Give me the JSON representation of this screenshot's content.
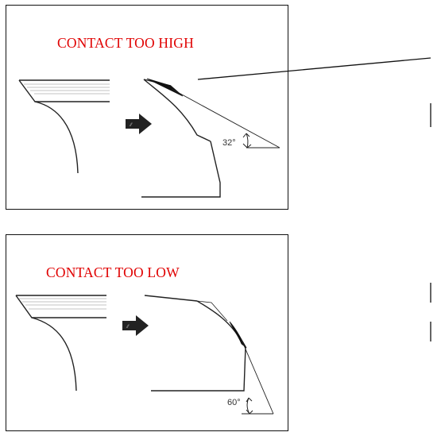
{
  "panels": [
    {
      "label": "CONTACT TOO HIGH",
      "angle_label": "32°"
    },
    {
      "label": "CONTACT TOO LOW",
      "angle_label": "60°"
    }
  ],
  "colors": {
    "label": "#e00000",
    "line": "#222222",
    "arrow": "#222222",
    "contact_fill": "#111111"
  },
  "icons": [
    "arrow-right-icon",
    "angle-arc-icon"
  ]
}
